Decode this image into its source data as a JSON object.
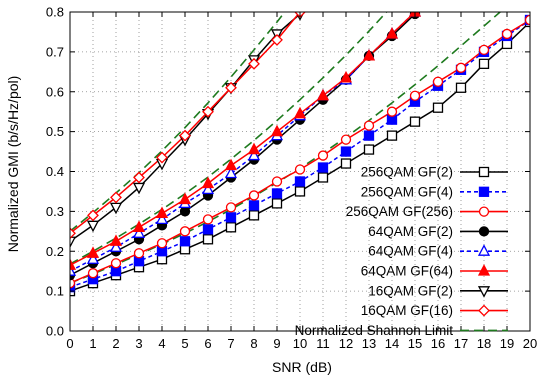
{
  "chart_data": {
    "type": "line",
    "xlabel": "SNR (dB)",
    "ylabel": "Normalized GMI (b/s/Hz/pol)",
    "xlim": [
      0,
      20
    ],
    "ylim": [
      0,
      0.8
    ],
    "xticks": [
      0,
      1,
      2,
      3,
      4,
      5,
      6,
      7,
      8,
      9,
      10,
      11,
      12,
      13,
      14,
      15,
      16,
      17,
      18,
      19,
      20
    ],
    "yticks": [
      0,
      0.1,
      0.2,
      0.3,
      0.4,
      0.5,
      0.6,
      0.7,
      0.8
    ],
    "grid": "dotted",
    "legend_position": "bottom-right",
    "x": [
      0,
      1,
      2,
      3,
      4,
      5,
      6,
      7,
      8,
      9,
      10,
      11,
      12,
      13,
      14,
      15,
      16,
      17,
      18,
      19,
      20
    ],
    "series": [
      {
        "name": "256QAM GF(2)",
        "color": "#000000",
        "dash": "solid",
        "marker": "open-square",
        "values": [
          0.1,
          0.12,
          0.14,
          0.16,
          0.18,
          0.205,
          0.23,
          0.26,
          0.29,
          0.32,
          0.35,
          0.385,
          0.42,
          0.455,
          0.49,
          0.525,
          0.56,
          0.61,
          0.67,
          0.72,
          0.775
        ]
      },
      {
        "name": "256QAM GF(4)",
        "color": "#0000ff",
        "dash": "dashed",
        "marker": "filled-square",
        "values": [
          0.11,
          0.13,
          0.15,
          0.175,
          0.2,
          0.225,
          0.255,
          0.285,
          0.315,
          0.345,
          0.375,
          0.41,
          0.45,
          0.49,
          0.53,
          0.575,
          0.615,
          0.655,
          0.7,
          0.74,
          0.78
        ]
      },
      {
        "name": "256QAM GF(256)",
        "color": "#ff0000",
        "dash": "solid",
        "marker": "open-circle",
        "values": [
          0.12,
          0.145,
          0.17,
          0.195,
          0.22,
          0.25,
          0.28,
          0.31,
          0.34,
          0.375,
          0.405,
          0.44,
          0.48,
          0.515,
          0.55,
          0.59,
          0.625,
          0.66,
          0.705,
          0.745,
          0.78
        ]
      },
      {
        "name": "64QAM GF(2)",
        "color": "#000000",
        "dash": "solid",
        "marker": "filled-circle",
        "values": [
          0.14,
          0.17,
          0.2,
          0.23,
          0.265,
          0.3,
          0.34,
          0.385,
          0.43,
          0.48,
          0.53,
          0.58,
          0.63,
          0.69,
          0.74,
          0.795,
          null,
          null,
          null,
          null,
          null
        ]
      },
      {
        "name": "64QAM GF(4)",
        "color": "#0000ff",
        "dash": "dashed",
        "marker": "open-triangle",
        "values": [
          0.15,
          0.18,
          0.21,
          0.245,
          0.28,
          0.32,
          0.355,
          0.395,
          0.44,
          0.49,
          0.54,
          0.59,
          0.63,
          0.69,
          0.745,
          0.8,
          null,
          null,
          null,
          null,
          null
        ]
      },
      {
        "name": "64QAM GF(64)",
        "color": "#ff0000",
        "dash": "solid",
        "marker": "filled-triangle",
        "values": [
          0.165,
          0.195,
          0.225,
          0.26,
          0.295,
          0.33,
          0.37,
          0.415,
          0.455,
          0.5,
          0.545,
          0.59,
          0.635,
          0.69,
          0.745,
          0.8,
          null,
          null,
          null,
          null,
          null
        ]
      },
      {
        "name": "16QAM GF(2)",
        "color": "#000000",
        "dash": "solid",
        "marker": "open-inverted-triangle",
        "values": [
          0.225,
          0.265,
          0.31,
          0.36,
          0.42,
          0.48,
          0.545,
          0.61,
          0.68,
          0.745,
          0.795,
          null,
          null,
          null,
          null,
          null,
          null,
          null,
          null,
          null,
          null
        ]
      },
      {
        "name": "16QAM GF(16)",
        "color": "#ff0000",
        "dash": "solid",
        "marker": "open-diamond",
        "values": [
          0.245,
          0.29,
          0.335,
          0.385,
          0.435,
          0.49,
          0.55,
          0.61,
          0.67,
          0.73,
          0.8,
          null,
          null,
          null,
          null,
          null,
          null,
          null,
          null,
          null,
          null
        ]
      }
    ],
    "shannon_curves": [
      {
        "name": "Normalized Shannon Limit",
        "color": "#1e7a1e",
        "dash": "long-dash",
        "values": [
          0.12,
          0.143,
          0.167,
          0.192,
          0.218,
          0.245,
          0.274,
          0.305,
          0.338,
          0.372,
          0.408,
          0.446,
          0.486,
          0.528,
          0.572,
          0.618,
          0.665,
          0.715,
          0.765,
          0.815,
          0.865
        ]
      },
      {
        "name": "Normalized Shannon Limit",
        "color": "#1e7a1e",
        "dash": "long-dash",
        "values": [
          0.168,
          0.2,
          0.233,
          0.268,
          0.305,
          0.344,
          0.386,
          0.431,
          0.478,
          0.528,
          0.58,
          0.635,
          0.692,
          0.752,
          0.815,
          null,
          null,
          null,
          null,
          null,
          null
        ]
      },
      {
        "name": "Normalized Shannon Limit",
        "color": "#1e7a1e",
        "dash": "long-dash",
        "values": [
          0.25,
          0.297,
          0.346,
          0.397,
          0.452,
          0.51,
          0.572,
          0.637,
          0.705,
          0.775,
          0.85,
          null,
          null,
          null,
          null,
          null,
          null,
          null,
          null,
          null,
          null
        ]
      }
    ]
  }
}
